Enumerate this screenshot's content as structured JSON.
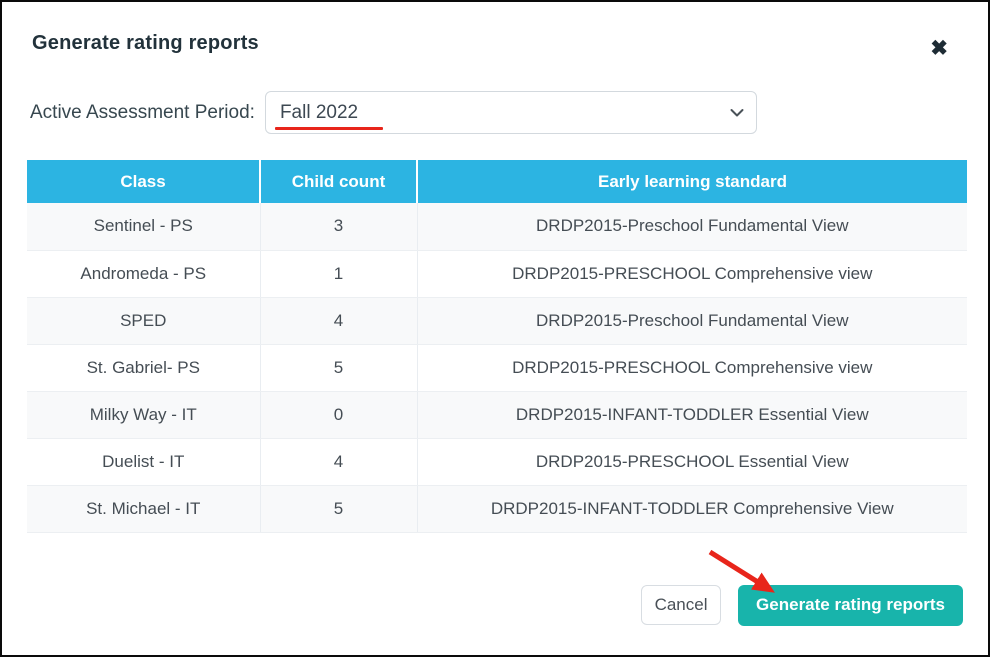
{
  "modal": {
    "title": "Generate rating reports",
    "close_icon": "✖"
  },
  "period": {
    "label": "Active Assessment Period:",
    "selected": "Fall 2022"
  },
  "table": {
    "headers": [
      "Class",
      "Child count",
      "Early learning standard"
    ],
    "rows": [
      [
        "Sentinel - PS",
        "3",
        "DRDP2015-Preschool Fundamental View"
      ],
      [
        "Andromeda - PS",
        "1",
        "DRDP2015-PRESCHOOL Comprehensive view"
      ],
      [
        "SPED",
        "4",
        "DRDP2015-Preschool Fundamental View"
      ],
      [
        "St. Gabriel- PS",
        "5",
        "DRDP2015-PRESCHOOL Comprehensive view"
      ],
      [
        "Milky Way - IT",
        "0",
        "DRDP2015-INFANT-TODDLER Essential View"
      ],
      [
        "Duelist - IT",
        "4",
        "DRDP2015-PRESCHOOL Essential View"
      ],
      [
        "St. Michael - IT",
        "5",
        "DRDP2015-INFANT-TODDLER Comprehensive View"
      ]
    ]
  },
  "footer": {
    "cancel_label": "Cancel",
    "generate_label": "Generate rating reports"
  },
  "colors": {
    "table_header_bg": "#2cb4e2",
    "accent_teal": "#18b4ab",
    "annotation_red": "#e8251b"
  }
}
